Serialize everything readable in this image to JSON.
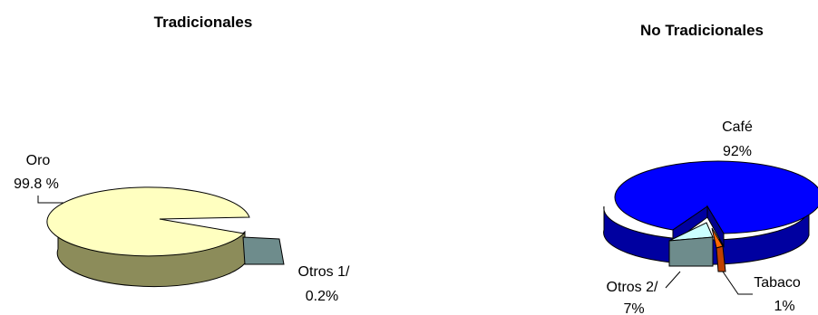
{
  "chart_data": [
    {
      "type": "pie",
      "title": "Tradicionales",
      "slices": [
        {
          "label": "Oro",
          "value_label": "99.8 %",
          "value": 99.8,
          "color": "#FFFFC0"
        },
        {
          "label": "Otros 1/",
          "value_label": "0.2%",
          "value": 0.2,
          "color": "#6E8C8C"
        }
      ]
    },
    {
      "type": "pie",
      "title": "No Tradicionales",
      "slices": [
        {
          "label": "Café",
          "value_label": "92%",
          "value": 92,
          "color": "#0000FF"
        },
        {
          "label": "Tabaco",
          "value_label": "1%",
          "value": 1,
          "color": "#FF6600"
        },
        {
          "label": "Otros 2/",
          "value_label": "7%",
          "value": 7,
          "color": "#CCFFFF"
        }
      ]
    }
  ]
}
